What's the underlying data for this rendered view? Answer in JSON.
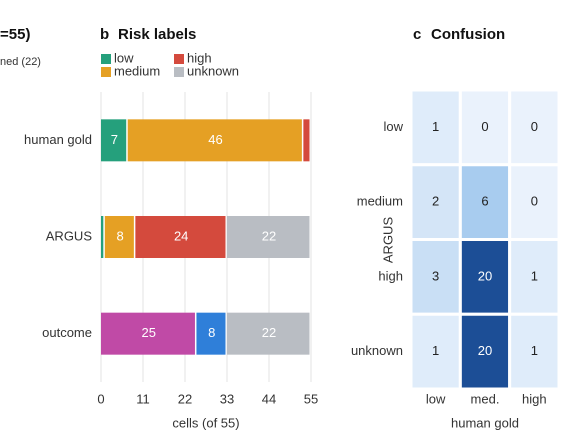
{
  "left_panel": {
    "title_fragment": "=55)",
    "note_fragment": "ned (22)"
  },
  "chart_data": [
    {
      "type": "stacked_bar_h",
      "panel_letter": "b",
      "title": "Risk labels",
      "legend": [
        {
          "name": "low",
          "color": "#25a07c"
        },
        {
          "name": "high",
          "color": "#d44a3d"
        },
        {
          "name": "medium",
          "color": "#e5a024"
        },
        {
          "name": "unknown",
          "color": "#b9bdc3"
        }
      ],
      "categories": [
        "human gold",
        "ARGUS",
        "outcome"
      ],
      "bars": [
        [
          {
            "value": 7,
            "color": "#25a07c"
          },
          {
            "value": 46,
            "color": "#e5a024"
          },
          {
            "value": 2,
            "color": "#d44a3d"
          }
        ],
        [
          {
            "value": 1,
            "color": "#25a07c"
          },
          {
            "value": 8,
            "color": "#e5a024"
          },
          {
            "value": 24,
            "color": "#d44a3d"
          },
          {
            "value": 22,
            "color": "#b9bdc3"
          }
        ],
        [
          {
            "value": 25,
            "color": "#c04aa6"
          },
          {
            "value": 8,
            "color": "#2f7fd9"
          },
          {
            "value": 22,
            "color": "#b9bdc3"
          }
        ]
      ],
      "xlim": [
        0,
        55
      ],
      "xticks": [
        0,
        11,
        22,
        33,
        44,
        55
      ],
      "xlabel": "cells (of 55)",
      "grid": true
    },
    {
      "type": "heatmap",
      "panel_letter": "c",
      "title": "Confusion",
      "rows": [
        "low",
        "medium",
        "high",
        "unknown"
      ],
      "columns": [
        "low",
        "med.",
        "high"
      ],
      "values": [
        [
          1,
          0,
          0
        ],
        [
          2,
          6,
          0
        ],
        [
          3,
          20,
          1
        ],
        [
          1,
          20,
          1
        ]
      ],
      "xlabel": "human gold",
      "ylabel": "ARGUS",
      "colormap": "Blues"
    }
  ]
}
